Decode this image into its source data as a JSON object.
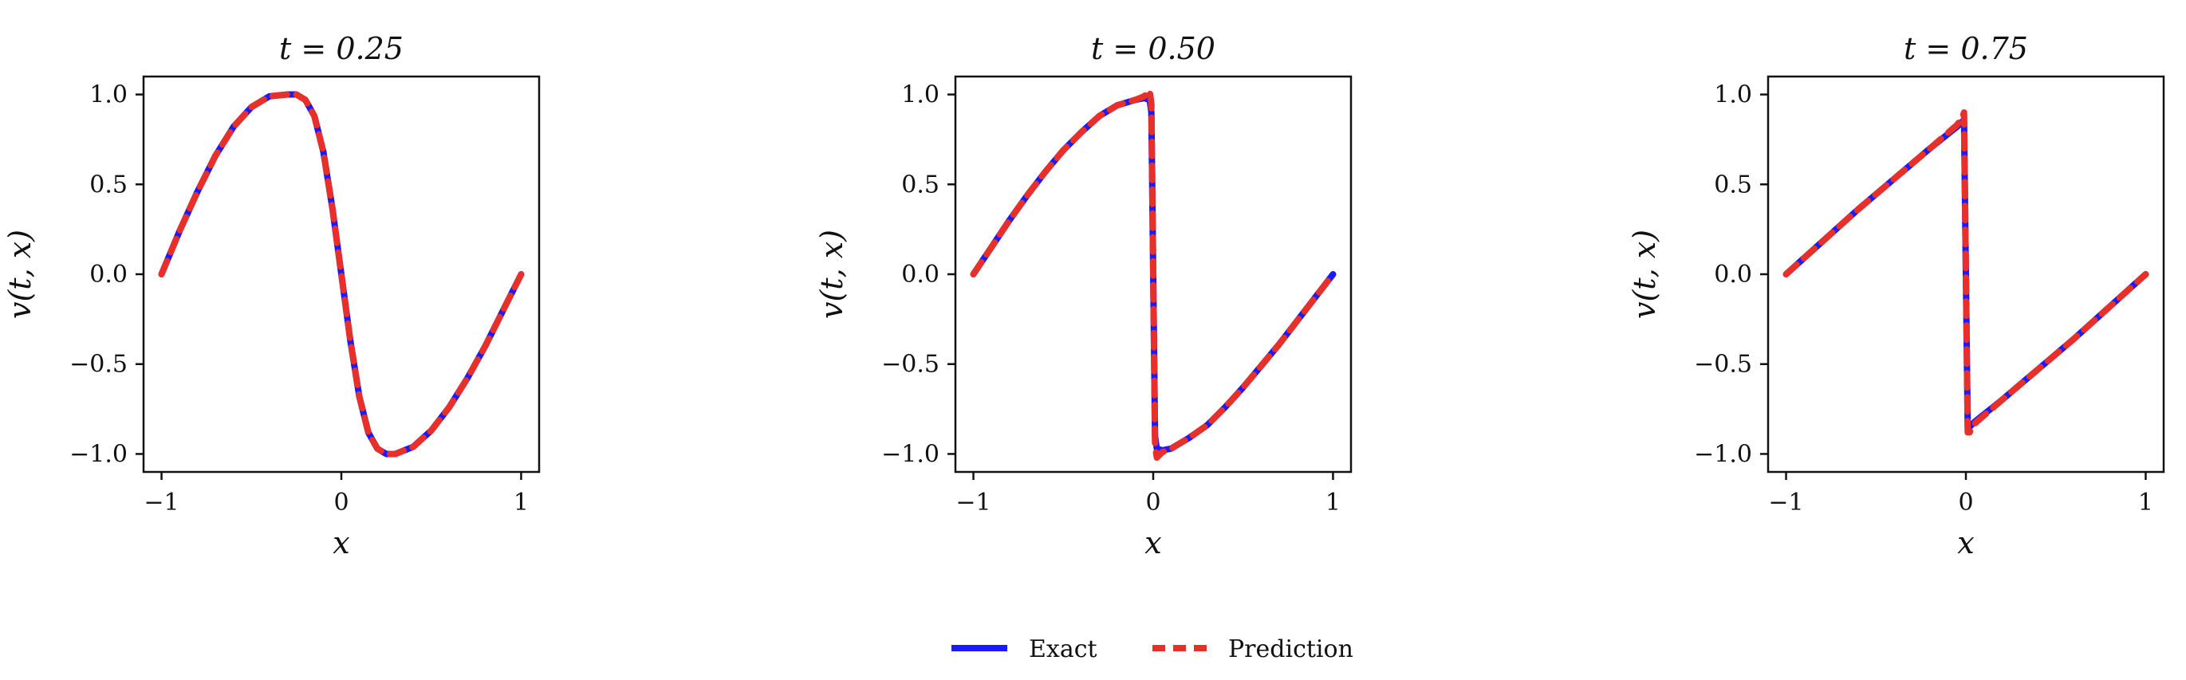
{
  "chart_data": [
    {
      "type": "line",
      "title": "t = 0.25",
      "xlabel": "x",
      "ylabel": "v(t, x)",
      "xlim": [
        -1.1,
        1.1
      ],
      "ylim": [
        -1.1,
        1.1
      ],
      "xticks": [
        -1,
        0,
        1
      ],
      "xtick_labels": [
        "−1",
        "0",
        "1"
      ],
      "yticks": [
        1.0,
        0.5,
        0.0,
        -0.5,
        -1.0
      ],
      "ytick_labels": [
        "1.0",
        "0.5",
        "0.0",
        "−0.5",
        "−1.0"
      ],
      "grid": false,
      "series": [
        {
          "name": "Exact",
          "x": [
            -1.0,
            -0.9,
            -0.8,
            -0.7,
            -0.6,
            -0.5,
            -0.4,
            -0.3,
            -0.25,
            -0.2,
            -0.15,
            -0.1,
            -0.05,
            0.0,
            0.05,
            0.1,
            0.15,
            0.2,
            0.25,
            0.3,
            0.4,
            0.5,
            0.6,
            0.7,
            0.8,
            0.9,
            1.0
          ],
          "y": [
            0.0,
            0.24,
            0.46,
            0.66,
            0.82,
            0.93,
            0.99,
            1.0,
            1.0,
            0.97,
            0.88,
            0.68,
            0.37,
            0.0,
            -0.37,
            -0.68,
            -0.88,
            -0.97,
            -1.0,
            -1.0,
            -0.96,
            -0.87,
            -0.74,
            -0.58,
            -0.4,
            -0.2,
            0.0
          ]
        },
        {
          "name": "Prediction",
          "x": [
            -1.0,
            -0.9,
            -0.8,
            -0.7,
            -0.6,
            -0.5,
            -0.4,
            -0.3,
            -0.25,
            -0.2,
            -0.15,
            -0.1,
            -0.05,
            0.0,
            0.05,
            0.1,
            0.15,
            0.2,
            0.25,
            0.3,
            0.4,
            0.5,
            0.6,
            0.7,
            0.8,
            0.9,
            1.0
          ],
          "y": [
            0.0,
            0.24,
            0.46,
            0.66,
            0.82,
            0.93,
            0.99,
            1.0,
            1.0,
            0.97,
            0.88,
            0.68,
            0.37,
            0.0,
            -0.37,
            -0.68,
            -0.88,
            -0.97,
            -1.0,
            -1.0,
            -0.96,
            -0.87,
            -0.74,
            -0.58,
            -0.4,
            -0.2,
            0.0
          ]
        }
      ]
    },
    {
      "type": "line",
      "title": "t = 0.50",
      "xlabel": "x",
      "ylabel": "v(t, x)",
      "xlim": [
        -1.1,
        1.1
      ],
      "ylim": [
        -1.1,
        1.1
      ],
      "xticks": [
        -1,
        0,
        1
      ],
      "xtick_labels": [
        "−1",
        "0",
        "1"
      ],
      "yticks": [
        1.0,
        0.5,
        0.0,
        -0.5,
        -1.0
      ],
      "ytick_labels": [
        "1.0",
        "0.5",
        "0.0",
        "−0.5",
        "−1.0"
      ],
      "grid": false,
      "series": [
        {
          "name": "Exact",
          "x": [
            -1.0,
            -0.9,
            -0.8,
            -0.7,
            -0.6,
            -0.5,
            -0.4,
            -0.3,
            -0.2,
            -0.1,
            -0.05,
            -0.02,
            -0.01,
            0.0,
            0.01,
            0.02,
            0.05,
            0.1,
            0.2,
            0.3,
            0.4,
            0.5,
            0.6,
            0.7,
            0.8,
            0.9,
            1.0
          ],
          "y": [
            0.0,
            0.15,
            0.3,
            0.44,
            0.57,
            0.69,
            0.79,
            0.88,
            0.94,
            0.97,
            0.98,
            0.97,
            0.9,
            0.0,
            -0.9,
            -0.97,
            -0.98,
            -0.97,
            -0.91,
            -0.84,
            -0.74,
            -0.63,
            -0.51,
            -0.39,
            -0.26,
            -0.13,
            0.0
          ]
        },
        {
          "name": "Prediction",
          "x": [
            -1.0,
            -0.9,
            -0.8,
            -0.7,
            -0.6,
            -0.5,
            -0.4,
            -0.3,
            -0.2,
            -0.1,
            -0.05,
            -0.02,
            -0.01,
            0.0,
            0.01,
            0.02,
            0.05,
            0.1,
            0.2,
            0.3,
            0.4,
            0.5,
            0.6,
            0.7,
            0.8,
            0.9,
            1.0
          ],
          "y": [
            0.0,
            0.15,
            0.3,
            0.44,
            0.57,
            0.69,
            0.79,
            0.88,
            0.94,
            0.97,
            0.99,
            1.02,
            0.95,
            0.0,
            -0.95,
            -1.02,
            -0.99,
            -0.97,
            -0.91,
            -0.84,
            -0.74,
            -0.63,
            -0.51,
            -0.39,
            -0.26,
            -0.13,
            0.0
          ]
        }
      ]
    },
    {
      "type": "line",
      "title": "t = 0.75",
      "xlabel": "x",
      "ylabel": "v(t, x)",
      "xlim": [
        -1.1,
        1.1
      ],
      "ylim": [
        -1.1,
        1.1
      ],
      "xticks": [
        -1,
        0,
        1
      ],
      "xtick_labels": [
        "−1",
        "0",
        "1"
      ],
      "yticks": [
        1.0,
        0.5,
        0.0,
        -0.5,
        -1.0
      ],
      "ytick_labels": [
        "1.0",
        "0.5",
        "0.0",
        "−0.5",
        "−1.0"
      ],
      "grid": false,
      "series": [
        {
          "name": "Exact",
          "x": [
            -1.0,
            -0.8,
            -0.6,
            -0.4,
            -0.2,
            -0.05,
            -0.02,
            -0.01,
            0.0,
            0.01,
            0.02,
            0.05,
            0.2,
            0.4,
            0.6,
            0.8,
            1.0
          ],
          "y": [
            0.0,
            0.18,
            0.36,
            0.53,
            0.7,
            0.82,
            0.85,
            0.85,
            0.0,
            -0.85,
            -0.85,
            -0.82,
            -0.7,
            -0.53,
            -0.36,
            -0.18,
            0.0
          ]
        },
        {
          "name": "Prediction",
          "x": [
            -1.0,
            -0.8,
            -0.6,
            -0.4,
            -0.2,
            -0.05,
            -0.02,
            -0.01,
            0.0,
            0.01,
            0.02,
            0.05,
            0.2,
            0.4,
            0.6,
            0.8,
            1.0
          ],
          "y": [
            0.0,
            0.18,
            0.36,
            0.53,
            0.7,
            0.83,
            0.87,
            0.9,
            0.0,
            -0.88,
            -0.88,
            -0.83,
            -0.7,
            -0.53,
            -0.36,
            -0.18,
            0.0
          ]
        }
      ]
    }
  ],
  "legend": {
    "placement": "bottom-center",
    "items": [
      {
        "label": "Exact",
        "color": "#1a1aff",
        "style": "solid"
      },
      {
        "label": "Prediction",
        "color": "#e8302a",
        "style": "dashed"
      }
    ]
  },
  "colors": {
    "exact": "#1a1aff",
    "prediction": "#e8302a",
    "axes": "#111111",
    "background": "#ffffff"
  }
}
